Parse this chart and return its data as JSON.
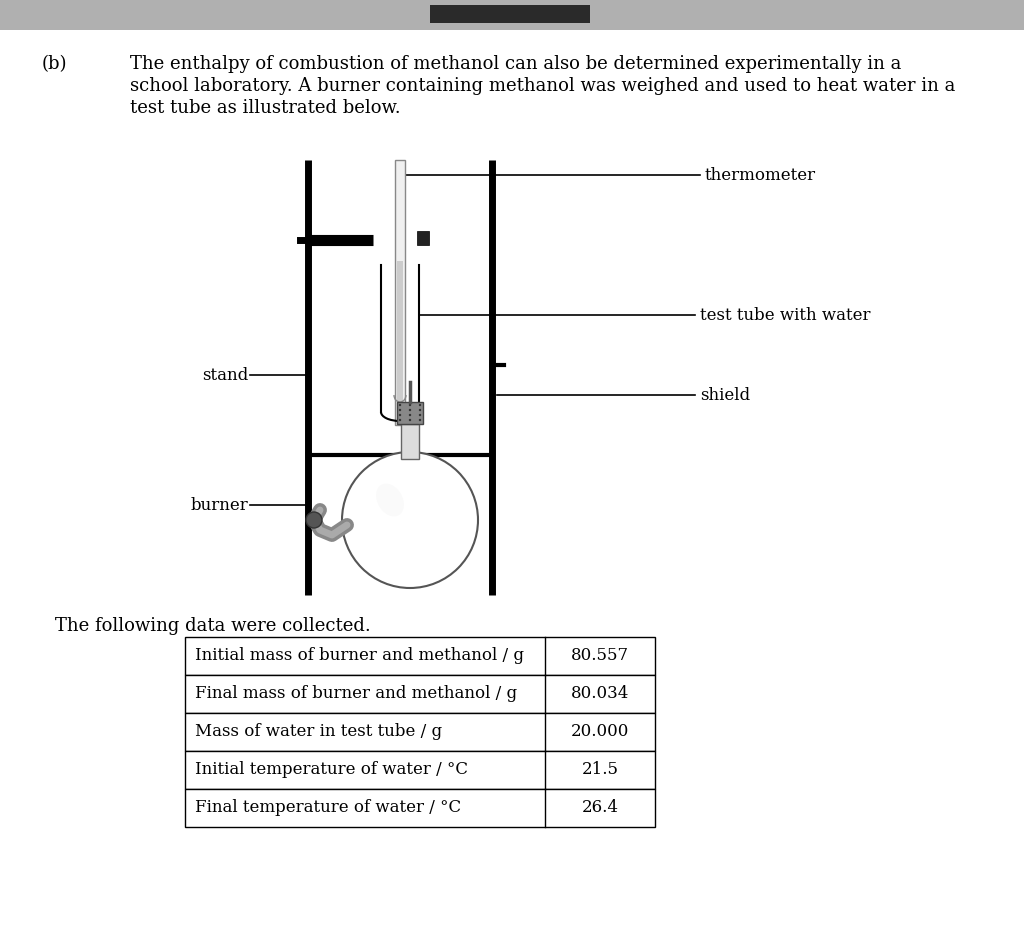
{
  "background_top": "#c8c8c8",
  "background_main": "#e8e8e8",
  "page_bg": "#ffffff",
  "top_bar_color": "#2a2a2a",
  "part_label": "(b)",
  "paragraph_text_lines": [
    "The enthalpy of combustion of methanol can also be determined experimentally in a",
    "school laboratory. A burner containing methanol was weighed and used to heat water in a",
    "test tube as illustrated below."
  ],
  "data_intro": "The following data were collected.",
  "table_rows": [
    [
      "Initial mass of burner and methanol / g",
      "80.557"
    ],
    [
      "Final mass of burner and methanol / g",
      "80.034"
    ],
    [
      "Mass of water in test tube / g",
      "20.000"
    ],
    [
      "Initial temperature of water / °C",
      "21.5"
    ],
    [
      "Final temperature of water / °C",
      "26.4"
    ]
  ],
  "diagram_labels": {
    "thermometer": "thermometer",
    "test_tube": "test tube with water",
    "stand": "stand",
    "shield": "shield",
    "burner": "burner"
  },
  "font_size_body": 13,
  "font_size_label": 12,
  "font_size_table": 12,
  "font_family": "DejaVu Serif"
}
